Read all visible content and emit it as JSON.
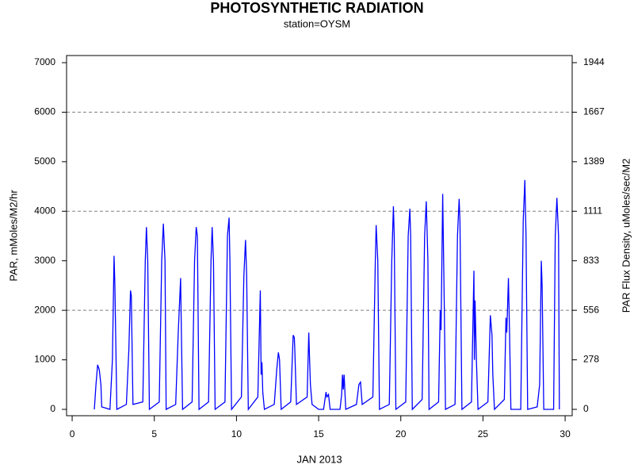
{
  "chart_data": {
    "type": "line",
    "title": "PHOTOSYNTHETIC RADIATION",
    "subtitle": "station=OYSM",
    "xlabel": "JAN 2013",
    "ylabel": "PAR, mMoles/M2/hr",
    "y2label": "PAR Flux Density, uMoles/sec/M2",
    "xlim": [
      -0.34,
      30.43
    ],
    "xticks": [
      0,
      5,
      10,
      15,
      20,
      25,
      30
    ],
    "ylim": [
      -128,
      7144
    ],
    "yticks": [
      0,
      1000,
      2000,
      3000,
      4000,
      5000,
      6000,
      7000
    ],
    "y2lim": [
      -35.6,
      1984.4
    ],
    "y2ticks": [
      0,
      {
        "value": 277.78,
        "label": "278"
      },
      {
        "value": 555.56,
        "label": "556"
      },
      {
        "value": 833.33,
        "label": "833"
      },
      {
        "value": 1111.11,
        "label": "1111"
      },
      {
        "value": 1388.89,
        "label": "1389"
      },
      {
        "value": 1666.67,
        "label": "1667"
      },
      {
        "value": 1944.44,
        "label": "1944"
      }
    ],
    "grid_lines": [
      2000,
      4000,
      6000
    ],
    "x": [
      1.35,
      1.45,
      1.55,
      1.65,
      1.75,
      1.8,
      2.3,
      2.45,
      2.55,
      2.6,
      2.72,
      3.3,
      3.45,
      3.55,
      3.6,
      3.7,
      4.3,
      4.45,
      4.52,
      4.6,
      4.7,
      5.3,
      5.45,
      5.55,
      5.65,
      5.72,
      6.3,
      6.45,
      6.6,
      6.65,
      6.72,
      7.3,
      7.45,
      7.55,
      7.62,
      7.72,
      8.3,
      8.45,
      8.52,
      8.6,
      8.7,
      9.3,
      9.45,
      9.55,
      9.6,
      9.7,
      10.3,
      10.45,
      10.55,
      10.62,
      10.72,
      11.3,
      11.45,
      11.5,
      11.55,
      11.6,
      11.7,
      12.3,
      12.45,
      12.55,
      12.62,
      12.72,
      13.3,
      13.45,
      13.52,
      13.55,
      13.65,
      14.3,
      14.4,
      14.45,
      14.5,
      14.6,
      15,
      15.3,
      15.45,
      15.5,
      15.6,
      15.7,
      16.3,
      16.4,
      16.45,
      16.5,
      16.55,
      16.65,
      17.3,
      17.45,
      17.55,
      17.65,
      18.3,
      18.45,
      18.5,
      18.6,
      18.7,
      19.3,
      19.45,
      19.55,
      19.6,
      19.7,
      20.3,
      20.45,
      20.55,
      20.6,
      20.7,
      21.3,
      21.45,
      21.55,
      21.65,
      21.72,
      22.3,
      22.4,
      22.45,
      22.55,
      22.65,
      22.72,
      23.3,
      23.45,
      23.55,
      23.6,
      23.72,
      24.3,
      24.45,
      24.48,
      24.52,
      24.6,
      24.7,
      25.3,
      25.45,
      25.55,
      25.6,
      25.7,
      26.3,
      26.4,
      26.45,
      26.55,
      26.62,
      26.7,
      27.3,
      27.45,
      27.55,
      27.62,
      27.72,
      28.3,
      28.45,
      28.55,
      28.6,
      28.7,
      29.3,
      29.4,
      29.5,
      29.6,
      29.65
    ],
    "series": [
      {
        "color": "#0000ff",
        "values": [
          0,
          500,
          900,
          800,
          500,
          50,
          0,
          1000,
          3100,
          2500,
          0,
          100,
          1200,
          2400,
          2300,
          100,
          150,
          3000,
          3680,
          3000,
          0,
          150,
          3000,
          3750,
          3000,
          0,
          100,
          1500,
          2650,
          1500,
          0,
          150,
          3000,
          3680,
          3500,
          0,
          150,
          3000,
          3680,
          3000,
          0,
          150,
          3500,
          3870,
          3000,
          0,
          250,
          2700,
          3420,
          2700,
          0,
          250,
          2400,
          700,
          950,
          350,
          0,
          100,
          800,
          1150,
          1000,
          0,
          150,
          1500,
          1450,
          1200,
          100,
          250,
          1550,
          1000,
          500,
          100,
          0,
          0,
          350,
          250,
          300,
          0,
          0,
          300,
          700,
          400,
          700,
          0,
          100,
          500,
          550,
          100,
          250,
          3000,
          3720,
          3000,
          0,
          100,
          3000,
          4100,
          3500,
          0,
          150,
          3500,
          4050,
          3500,
          0,
          200,
          3500,
          4200,
          3000,
          0,
          150,
          2000,
          1600,
          4350,
          2000,
          0,
          100,
          3500,
          4250,
          3800,
          0,
          150,
          2800,
          1000,
          2200,
          1000,
          0,
          150,
          1900,
          1500,
          700,
          0,
          200,
          1850,
          1550,
          2650,
          1500,
          0,
          0,
          3800,
          4630,
          3500,
          0,
          50,
          500,
          3000,
          2500,
          0,
          0,
          3500,
          4270,
          3500,
          0
        ]
      }
    ]
  }
}
